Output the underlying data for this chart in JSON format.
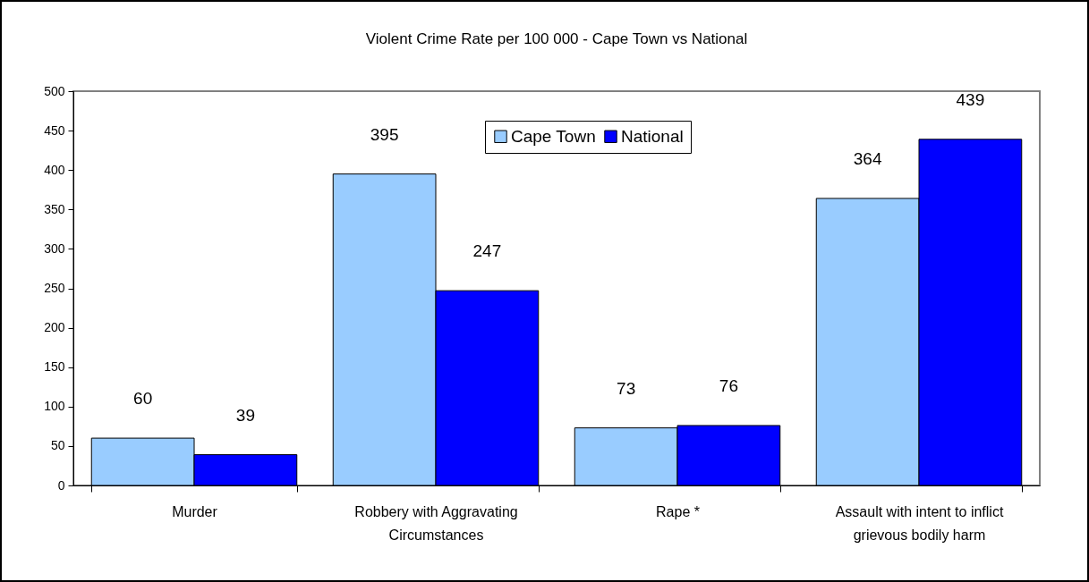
{
  "chart_data": {
    "type": "bar",
    "title": "Violent Crime Rate per 100 000 - Cape Town vs National",
    "categories": [
      "Murder",
      "Robbery with Aggravating Circumstances",
      "Rape *",
      "Assault with intent to inflict grievous bodily harm"
    ],
    "series": [
      {
        "name": "Cape Town",
        "color": "#99ccff",
        "values": [
          60,
          395,
          73,
          364
        ]
      },
      {
        "name": "National",
        "color": "#0000ff",
        "values": [
          39,
          247,
          76,
          439
        ]
      }
    ],
    "ylim": [
      0,
      500
    ],
    "yticks": [
      0,
      50,
      100,
      150,
      200,
      250,
      300,
      350,
      400,
      450,
      500
    ],
    "data_labels": true,
    "legend": "top",
    "grid": false
  }
}
